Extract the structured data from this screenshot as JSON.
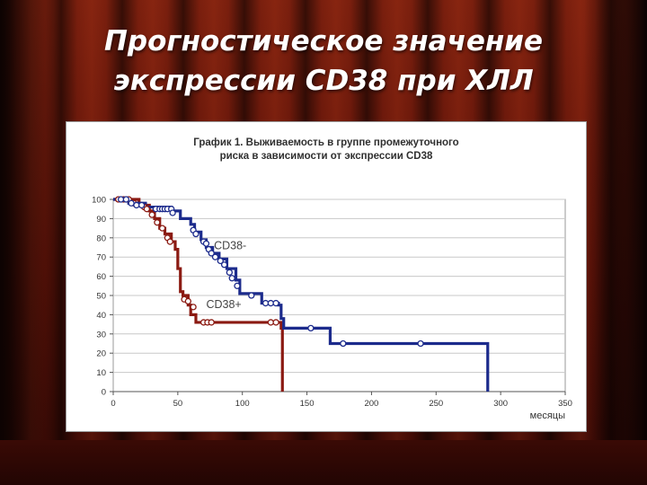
{
  "slide": {
    "title_line1": "Прогностическое значение",
    "title_line2": "экспрессии CD38 при ХЛЛ"
  },
  "colors": {
    "background_curtain": "#5c1208",
    "series_cd38_minus": "#1c2b8c",
    "series_cd38_plus": "#8b1a12",
    "grid": "#c8c8c8"
  },
  "chart_data": {
    "type": "line",
    "subtype": "kaplan-meier step survival curve",
    "title_line1": "График 1. Выживаемость в группе промежуточного",
    "title_line2": "риска в зависимости от экспрессии CD38",
    "xlabel": "месяцы",
    "ylabel": "",
    "xlim": [
      0,
      350
    ],
    "ylim": [
      0,
      100
    ],
    "x_ticks": [
      0,
      50,
      100,
      150,
      200,
      250,
      300,
      350
    ],
    "y_ticks": [
      0,
      10,
      20,
      30,
      40,
      50,
      60,
      70,
      80,
      90,
      100
    ],
    "grid": "horizontal",
    "series": [
      {
        "name": "CD38-",
        "color": "#1c2b8c",
        "steps": [
          [
            0,
            100
          ],
          [
            12,
            98
          ],
          [
            25,
            96
          ],
          [
            45,
            94
          ],
          [
            52,
            90
          ],
          [
            60,
            87
          ],
          [
            63,
            83
          ],
          [
            68,
            79
          ],
          [
            72,
            75
          ],
          [
            77,
            72
          ],
          [
            82,
            69
          ],
          [
            88,
            64
          ],
          [
            95,
            58
          ],
          [
            98,
            51
          ],
          [
            115,
            46
          ],
          [
            128,
            45
          ],
          [
            130,
            38
          ],
          [
            132,
            33
          ],
          [
            165,
            33
          ],
          [
            168,
            25
          ],
          [
            290,
            25
          ],
          [
            290,
            0
          ]
        ],
        "censored": [
          [
            6,
            100
          ],
          [
            10,
            100
          ],
          [
            14,
            98
          ],
          [
            18,
            97
          ],
          [
            22,
            97
          ],
          [
            33,
            95
          ],
          [
            36,
            95
          ],
          [
            38,
            95
          ],
          [
            40,
            95
          ],
          [
            42,
            95
          ],
          [
            45,
            95
          ],
          [
            46,
            93
          ],
          [
            62,
            84
          ],
          [
            64,
            82
          ],
          [
            70,
            78
          ],
          [
            72,
            77
          ],
          [
            74,
            74
          ],
          [
            76,
            72
          ],
          [
            79,
            70
          ],
          [
            83,
            68
          ],
          [
            86,
            66
          ],
          [
            90,
            62
          ],
          [
            92,
            59
          ],
          [
            96,
            55
          ],
          [
            107,
            50
          ],
          [
            118,
            46
          ],
          [
            122,
            46
          ],
          [
            126,
            46
          ],
          [
            153,
            33
          ],
          [
            178,
            25
          ],
          [
            238,
            25
          ]
        ]
      },
      {
        "name": "CD38+",
        "color": "#8b1a12",
        "steps": [
          [
            0,
            100
          ],
          [
            20,
            97
          ],
          [
            28,
            94
          ],
          [
            32,
            90
          ],
          [
            36,
            85
          ],
          [
            40,
            82
          ],
          [
            45,
            78
          ],
          [
            48,
            74
          ],
          [
            50,
            64
          ],
          [
            52,
            52
          ],
          [
            54,
            50
          ],
          [
            58,
            45
          ],
          [
            60,
            40
          ],
          [
            64,
            36
          ],
          [
            130,
            36
          ],
          [
            130,
            33
          ],
          [
            131,
            0
          ]
        ],
        "censored": [
          [
            4,
            100
          ],
          [
            8,
            100
          ],
          [
            12,
            100
          ],
          [
            16,
            98
          ],
          [
            24,
            96
          ],
          [
            26,
            95
          ],
          [
            30,
            92
          ],
          [
            34,
            88
          ],
          [
            38,
            85
          ],
          [
            42,
            80
          ],
          [
            44,
            78
          ],
          [
            55,
            48
          ],
          [
            58,
            47
          ],
          [
            62,
            44
          ],
          [
            70,
            36
          ],
          [
            73,
            36
          ],
          [
            76,
            36
          ],
          [
            122,
            36
          ],
          [
            126,
            36
          ]
        ]
      }
    ],
    "annotations": [
      {
        "text": "CD38-",
        "x": 78,
        "y": 74
      },
      {
        "text": "CD38+",
        "x": 72,
        "y": 43.5
      }
    ]
  }
}
